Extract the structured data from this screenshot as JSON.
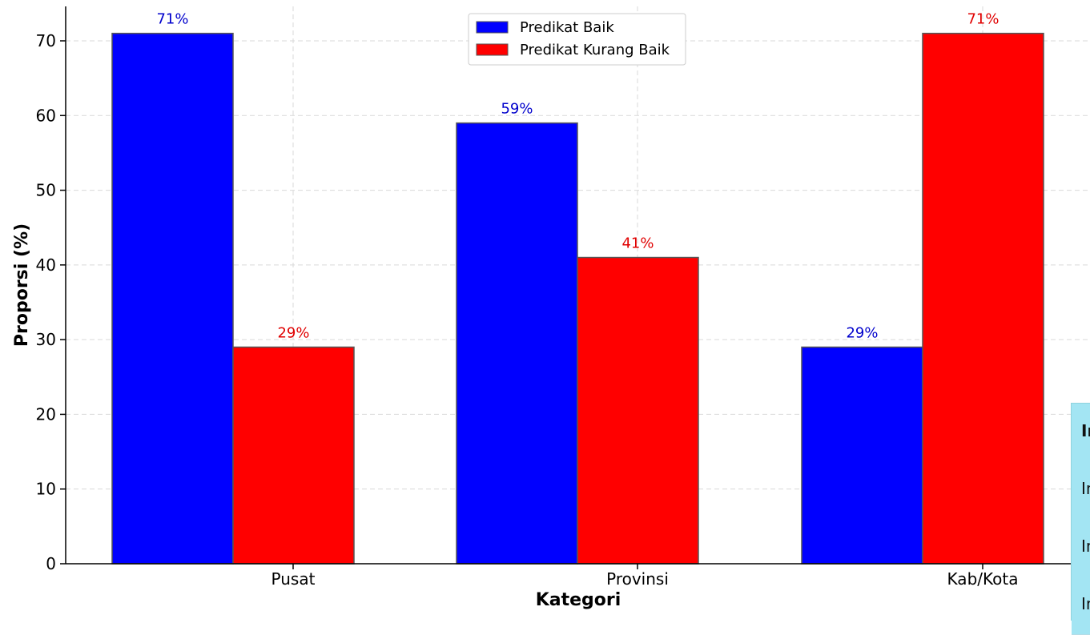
{
  "chart_data": {
    "type": "bar",
    "title": "",
    "xlabel": "Kategori",
    "ylabel": "Proporsi (%)",
    "categories": [
      "Pusat",
      "Provinsi",
      "Kab/Kota"
    ],
    "series": [
      {
        "name": "Predikat Baik",
        "values": [
          71,
          59,
          29
        ],
        "color": "#0000ff",
        "label_color": "#0000cc",
        "labels": [
          "71%",
          "59%",
          "29%"
        ]
      },
      {
        "name": "Predikat Kurang Baik",
        "values": [
          29,
          41,
          71
        ],
        "color": "#ff0000",
        "label_color": "#e00000",
        "labels": [
          "29%",
          "41%",
          "71%"
        ]
      }
    ],
    "ylim": [
      0,
      75
    ],
    "yticks": [
      "0",
      "10",
      "20",
      "30",
      "40",
      "50",
      "60",
      "70"
    ],
    "grid": true,
    "legend_position": "top-center"
  },
  "side_table": {
    "rows": [
      {
        "text": "In",
        "header": true
      },
      {
        "text": "In",
        "header": false
      },
      {
        "text": "In",
        "header": false
      },
      {
        "text": "In",
        "header": false
      }
    ]
  }
}
